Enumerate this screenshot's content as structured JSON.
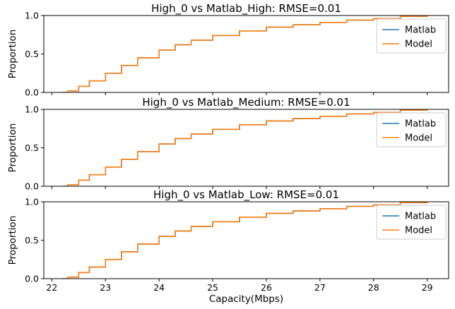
{
  "chart_data": {
    "type": "line",
    "xlabel": "Capacity(Mbps)",
    "xlim": [
      21.85,
      29.4
    ],
    "xticks": [
      "22",
      "23",
      "24",
      "25",
      "26",
      "27",
      "28",
      "29"
    ],
    "grid": false,
    "colors": {
      "matlab": "#1f77b4",
      "model": "#ff7f0e"
    },
    "subplots": [
      {
        "title": "High_0 vs Matlab_High: RMSE=0.01",
        "ylabel": "Proportion",
        "ylim": [
          0.0,
          1.0
        ],
        "yticks": [
          "0.0",
          "0.5",
          "1.0"
        ],
        "legend": {
          "position": "top-right",
          "entries": [
            "Matlab",
            "Model"
          ]
        },
        "series": [
          {
            "name": "Matlab",
            "x": [
              22.2,
              22.3,
              22.5,
              22.7,
              23.0,
              23.3,
              23.6,
              24.0,
              24.3,
              24.6,
              25.0,
              25.5,
              26.0,
              26.5,
              27.0,
              27.5,
              28.0,
              28.5,
              29.0
            ],
            "y": [
              0.0,
              0.02,
              0.08,
              0.15,
              0.25,
              0.35,
              0.45,
              0.55,
              0.62,
              0.68,
              0.74,
              0.8,
              0.85,
              0.88,
              0.91,
              0.94,
              0.96,
              0.99,
              1.0
            ]
          },
          {
            "name": "Model",
            "x": [
              22.2,
              22.3,
              22.5,
              22.7,
              23.0,
              23.3,
              23.6,
              24.0,
              24.3,
              24.6,
              25.0,
              25.5,
              26.0,
              26.5,
              27.0,
              27.5,
              28.0,
              28.5,
              29.0
            ],
            "y": [
              0.0,
              0.02,
              0.08,
              0.15,
              0.25,
              0.35,
              0.45,
              0.55,
              0.62,
              0.68,
              0.74,
              0.8,
              0.85,
              0.88,
              0.91,
              0.94,
              0.96,
              0.99,
              1.0
            ]
          }
        ]
      },
      {
        "title": "High_0 vs Matlab_Medium: RMSE=0.01",
        "ylabel": "Proportion",
        "ylim": [
          0.0,
          1.0
        ],
        "yticks": [
          "0.0",
          "0.5",
          "1.0"
        ],
        "legend": {
          "position": "top-right",
          "entries": [
            "Matlab",
            "Model"
          ]
        },
        "series": [
          {
            "name": "Matlab",
            "x": [
              22.2,
              22.3,
              22.5,
              22.7,
              23.0,
              23.3,
              23.6,
              24.0,
              24.3,
              24.6,
              25.0,
              25.5,
              26.0,
              26.5,
              27.0,
              27.5,
              28.0,
              28.5,
              29.0
            ],
            "y": [
              0.0,
              0.02,
              0.08,
              0.15,
              0.25,
              0.35,
              0.45,
              0.55,
              0.62,
              0.68,
              0.74,
              0.8,
              0.85,
              0.88,
              0.91,
              0.94,
              0.96,
              0.99,
              1.0
            ]
          },
          {
            "name": "Model",
            "x": [
              22.2,
              22.3,
              22.5,
              22.7,
              23.0,
              23.3,
              23.6,
              24.0,
              24.3,
              24.6,
              25.0,
              25.5,
              26.0,
              26.5,
              27.0,
              27.5,
              28.0,
              28.5,
              29.0
            ],
            "y": [
              0.0,
              0.02,
              0.08,
              0.15,
              0.25,
              0.35,
              0.45,
              0.55,
              0.62,
              0.68,
              0.74,
              0.8,
              0.85,
              0.88,
              0.91,
              0.94,
              0.96,
              0.99,
              1.0
            ]
          }
        ]
      },
      {
        "title": "High_0 vs Matlab_Low: RMSE=0.01",
        "ylabel": "Proportion",
        "ylim": [
          0.0,
          1.0
        ],
        "yticks": [
          "0.0",
          "0.5",
          "1.0"
        ],
        "legend": {
          "position": "top-right",
          "entries": [
            "Matlab",
            "Model"
          ]
        },
        "series": [
          {
            "name": "Matlab",
            "x": [
              22.2,
              22.3,
              22.5,
              22.7,
              23.0,
              23.3,
              23.6,
              24.0,
              24.3,
              24.6,
              25.0,
              25.5,
              26.0,
              26.5,
              27.0,
              27.5,
              28.0,
              28.5,
              29.0
            ],
            "y": [
              0.0,
              0.02,
              0.08,
              0.15,
              0.25,
              0.35,
              0.45,
              0.55,
              0.62,
              0.68,
              0.74,
              0.8,
              0.85,
              0.88,
              0.91,
              0.94,
              0.96,
              0.99,
              1.0
            ]
          },
          {
            "name": "Model",
            "x": [
              22.2,
              22.3,
              22.5,
              22.7,
              23.0,
              23.3,
              23.6,
              24.0,
              24.3,
              24.6,
              25.0,
              25.5,
              26.0,
              26.5,
              27.0,
              27.5,
              28.0,
              28.5,
              29.0
            ],
            "y": [
              0.0,
              0.02,
              0.08,
              0.15,
              0.25,
              0.35,
              0.45,
              0.55,
              0.62,
              0.68,
              0.74,
              0.8,
              0.85,
              0.88,
              0.91,
              0.94,
              0.96,
              0.99,
              1.0
            ]
          }
        ]
      }
    ]
  }
}
